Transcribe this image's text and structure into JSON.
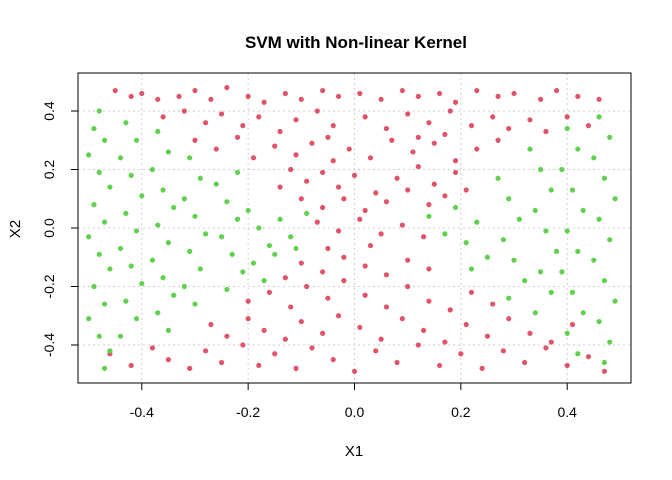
{
  "chart_data": {
    "type": "scatter",
    "title": "SVM with Non-linear Kernel",
    "xlabel": "X1",
    "ylabel": "X2",
    "xlim": [
      -0.52,
      0.52
    ],
    "ylim": [
      -0.53,
      0.53
    ],
    "xticks": [
      -0.4,
      -0.2,
      0.0,
      0.2,
      0.4
    ],
    "xtick_labels": [
      "-0.4",
      "-0.2",
      "0.0",
      "0.2",
      "0.4"
    ],
    "yticks": [
      -0.4,
      -0.2,
      0.0,
      0.2,
      0.4
    ],
    "ytick_labels": [
      "-0.4",
      "-0.2",
      "0.0",
      "0.2",
      "0.4"
    ],
    "grid": true,
    "legend": "none",
    "series": [
      {
        "color": "#DF536B",
        "points": [
          [
            -0.45,
            0.47
          ],
          [
            -0.42,
            0.45
          ],
          [
            -0.4,
            0.46
          ],
          [
            -0.37,
            0.44
          ],
          [
            -0.33,
            0.45
          ],
          [
            -0.3,
            0.47
          ],
          [
            -0.27,
            0.44
          ],
          [
            -0.24,
            0.48
          ],
          [
            -0.2,
            0.45
          ],
          [
            -0.17,
            0.43
          ],
          [
            -0.13,
            0.46
          ],
          [
            -0.1,
            0.44
          ],
          [
            -0.06,
            0.47
          ],
          [
            -0.03,
            0.45
          ],
          [
            0.01,
            0.46
          ],
          [
            0.05,
            0.44
          ],
          [
            0.09,
            0.47
          ],
          [
            0.12,
            0.45
          ],
          [
            0.16,
            0.46
          ],
          [
            0.19,
            0.43
          ],
          [
            0.23,
            0.47
          ],
          [
            0.27,
            0.45
          ],
          [
            0.3,
            0.46
          ],
          [
            0.35,
            0.44
          ],
          [
            0.38,
            0.47
          ],
          [
            0.42,
            0.45
          ],
          [
            0.46,
            0.44
          ],
          [
            -0.36,
            0.38
          ],
          [
            -0.32,
            0.4
          ],
          [
            -0.28,
            0.36
          ],
          [
            -0.25,
            0.39
          ],
          [
            -0.21,
            0.35
          ],
          [
            -0.18,
            0.38
          ],
          [
            -0.14,
            0.33
          ],
          [
            -0.11,
            0.37
          ],
          [
            -0.07,
            0.4
          ],
          [
            -0.04,
            0.35
          ],
          [
            0.02,
            0.38
          ],
          [
            0.06,
            0.34
          ],
          [
            0.1,
            0.39
          ],
          [
            0.14,
            0.36
          ],
          [
            0.18,
            0.4
          ],
          [
            0.22,
            0.35
          ],
          [
            0.26,
            0.38
          ],
          [
            0.29,
            0.34
          ],
          [
            0.33,
            0.37
          ],
          [
            0.36,
            0.33
          ],
          [
            0.4,
            0.38
          ],
          [
            0.44,
            0.35
          ],
          [
            -0.3,
            0.3
          ],
          [
            -0.26,
            0.27
          ],
          [
            -0.22,
            0.31
          ],
          [
            -0.19,
            0.24
          ],
          [
            -0.15,
            0.28
          ],
          [
            -0.11,
            0.25
          ],
          [
            -0.08,
            0.29
          ],
          [
            -0.04,
            0.23
          ],
          [
            -0.01,
            0.27
          ],
          [
            0.03,
            0.24
          ],
          [
            0.07,
            0.3
          ],
          [
            0.11,
            0.26
          ],
          [
            0.15,
            0.29
          ],
          [
            0.19,
            0.23
          ],
          [
            0.23,
            0.27
          ],
          [
            0.27,
            0.3
          ],
          [
            0.12,
            0.31
          ],
          [
            0.17,
            0.32
          ],
          [
            -0.05,
            0.31
          ],
          [
            -0.12,
            0.2
          ],
          [
            -0.09,
            0.16
          ],
          [
            -0.06,
            0.19
          ],
          [
            -0.03,
            0.14
          ],
          [
            0.0,
            0.18
          ],
          [
            0.04,
            0.12
          ],
          [
            0.08,
            0.17
          ],
          [
            0.12,
            0.21
          ],
          [
            0.15,
            0.15
          ],
          [
            0.19,
            0.19
          ],
          [
            -0.1,
            0.1
          ],
          [
            -0.06,
            0.07
          ],
          [
            -0.02,
            0.1
          ],
          [
            0.02,
            0.06
          ],
          [
            0.06,
            0.09
          ],
          [
            0.1,
            0.13
          ],
          [
            0.14,
            0.08
          ],
          [
            0.17,
            0.11
          ],
          [
            -0.14,
            0.14
          ],
          [
            0.21,
            0.13
          ],
          [
            -0.07,
            0.02
          ],
          [
            -0.03,
            -0.01
          ],
          [
            0.01,
            0.03
          ],
          [
            0.05,
            -0.02
          ],
          [
            0.09,
            0.01
          ],
          [
            0.13,
            -0.03
          ],
          [
            -0.05,
            -0.07
          ],
          [
            0.03,
            -0.06
          ],
          [
            -0.46,
            -0.43
          ],
          [
            -0.42,
            -0.47
          ],
          [
            -0.38,
            -0.41
          ],
          [
            -0.35,
            -0.45
          ],
          [
            -0.31,
            -0.48
          ],
          [
            -0.28,
            -0.42
          ],
          [
            -0.25,
            -0.46
          ],
          [
            -0.21,
            -0.4
          ],
          [
            -0.18,
            -0.47
          ],
          [
            -0.15,
            -0.43
          ],
          [
            -0.11,
            -0.48
          ],
          [
            -0.08,
            -0.41
          ],
          [
            -0.04,
            -0.45
          ],
          [
            0.0,
            -0.49
          ],
          [
            0.04,
            -0.42
          ],
          [
            0.08,
            -0.46
          ],
          [
            0.12,
            -0.4
          ],
          [
            0.16,
            -0.47
          ],
          [
            0.2,
            -0.43
          ],
          [
            0.24,
            -0.48
          ],
          [
            0.28,
            -0.42
          ],
          [
            0.32,
            -0.46
          ],
          [
            0.36,
            -0.41
          ],
          [
            0.4,
            -0.47
          ],
          [
            0.44,
            -0.44
          ],
          [
            0.47,
            -0.49
          ],
          [
            -0.27,
            -0.33
          ],
          [
            -0.24,
            -0.37
          ],
          [
            -0.2,
            -0.31
          ],
          [
            -0.17,
            -0.35
          ],
          [
            -0.13,
            -0.38
          ],
          [
            -0.1,
            -0.32
          ],
          [
            -0.06,
            -0.36
          ],
          [
            -0.03,
            -0.3
          ],
          [
            0.01,
            -0.34
          ],
          [
            0.05,
            -0.38
          ],
          [
            0.09,
            -0.31
          ],
          [
            0.13,
            -0.35
          ],
          [
            0.17,
            -0.39
          ],
          [
            0.21,
            -0.33
          ],
          [
            0.25,
            -0.37
          ],
          [
            0.29,
            -0.31
          ],
          [
            0.33,
            -0.36
          ],
          [
            0.37,
            -0.39
          ],
          [
            0.41,
            -0.33
          ],
          [
            -0.2,
            -0.25
          ],
          [
            -0.16,
            -0.22
          ],
          [
            -0.12,
            -0.27
          ],
          [
            -0.09,
            -0.2
          ],
          [
            -0.05,
            -0.24
          ],
          [
            -0.02,
            -0.18
          ],
          [
            0.02,
            -0.23
          ],
          [
            0.06,
            -0.27
          ],
          [
            0.1,
            -0.2
          ],
          [
            0.14,
            -0.25
          ],
          [
            0.18,
            -0.28
          ],
          [
            0.22,
            -0.22
          ],
          [
            0.26,
            -0.26
          ],
          [
            -0.1,
            -0.12
          ],
          [
            -0.06,
            -0.15
          ],
          [
            -0.02,
            -0.1
          ],
          [
            0.02,
            -0.13
          ],
          [
            0.06,
            -0.16
          ],
          [
            0.1,
            -0.11
          ],
          [
            0.14,
            -0.14
          ],
          [
            -0.13,
            -0.17
          ]
        ]
      },
      {
        "color": "#61D04F",
        "points": [
          [
            -0.48,
            0.4
          ],
          [
            -0.49,
            0.34
          ],
          [
            -0.47,
            0.3
          ],
          [
            -0.5,
            0.25
          ],
          [
            -0.48,
            0.19
          ],
          [
            -0.46,
            0.14
          ],
          [
            -0.49,
            0.08
          ],
          [
            -0.47,
            0.02
          ],
          [
            -0.5,
            -0.03
          ],
          [
            -0.48,
            -0.09
          ],
          [
            -0.46,
            -0.14
          ],
          [
            -0.49,
            -0.2
          ],
          [
            -0.47,
            -0.26
          ],
          [
            -0.5,
            -0.31
          ],
          [
            -0.48,
            -0.37
          ],
          [
            -0.46,
            -0.42
          ],
          [
            -0.47,
            -0.48
          ],
          [
            -0.43,
            0.36
          ],
          [
            -0.41,
            0.3
          ],
          [
            -0.44,
            0.24
          ],
          [
            -0.42,
            0.18
          ],
          [
            -0.4,
            0.11
          ],
          [
            -0.43,
            0.05
          ],
          [
            -0.41,
            -0.01
          ],
          [
            -0.44,
            -0.07
          ],
          [
            -0.42,
            -0.13
          ],
          [
            -0.4,
            -0.19
          ],
          [
            -0.43,
            -0.25
          ],
          [
            -0.41,
            -0.31
          ],
          [
            -0.44,
            -0.37
          ],
          [
            -0.37,
            0.33
          ],
          [
            -0.35,
            0.26
          ],
          [
            -0.38,
            0.2
          ],
          [
            -0.36,
            0.13
          ],
          [
            -0.34,
            0.07
          ],
          [
            -0.37,
            0.01
          ],
          [
            -0.35,
            -0.05
          ],
          [
            -0.38,
            -0.11
          ],
          [
            -0.36,
            -0.17
          ],
          [
            -0.34,
            -0.23
          ],
          [
            -0.37,
            -0.29
          ],
          [
            -0.35,
            -0.35
          ],
          [
            -0.31,
            0.24
          ],
          [
            -0.29,
            0.17
          ],
          [
            -0.32,
            0.1
          ],
          [
            -0.3,
            0.04
          ],
          [
            -0.28,
            -0.02
          ],
          [
            -0.31,
            -0.08
          ],
          [
            -0.29,
            -0.14
          ],
          [
            -0.32,
            -0.2
          ],
          [
            -0.3,
            -0.26
          ],
          [
            -0.26,
            0.15
          ],
          [
            -0.24,
            0.09
          ],
          [
            -0.22,
            0.03
          ],
          [
            -0.25,
            -0.03
          ],
          [
            -0.23,
            -0.09
          ],
          [
            -0.21,
            -0.15
          ],
          [
            -0.24,
            -0.21
          ],
          [
            -0.2,
            0.06
          ],
          [
            -0.18,
            0.0
          ],
          [
            -0.16,
            -0.06
          ],
          [
            -0.19,
            -0.12
          ],
          [
            -0.17,
            -0.18
          ],
          [
            -0.14,
            0.03
          ],
          [
            -0.12,
            -0.03
          ],
          [
            -0.15,
            -0.09
          ],
          [
            -0.09,
            0.05
          ],
          [
            -0.11,
            -0.07
          ],
          [
            -0.22,
            0.19
          ],
          [
            0.14,
            0.04
          ],
          [
            0.17,
            -0.02
          ],
          [
            0.19,
            0.07
          ],
          [
            0.21,
            -0.05
          ],
          [
            0.23,
            0.02
          ],
          [
            0.25,
            -0.1
          ],
          [
            0.22,
            -0.14
          ],
          [
            0.27,
            0.17
          ],
          [
            0.29,
            0.1
          ],
          [
            0.31,
            0.03
          ],
          [
            0.28,
            -0.04
          ],
          [
            0.3,
            -0.11
          ],
          [
            0.32,
            -0.18
          ],
          [
            0.29,
            -0.24
          ],
          [
            0.33,
            0.27
          ],
          [
            0.35,
            0.2
          ],
          [
            0.37,
            0.13
          ],
          [
            0.34,
            0.06
          ],
          [
            0.36,
            -0.01
          ],
          [
            0.38,
            -0.08
          ],
          [
            0.35,
            -0.15
          ],
          [
            0.37,
            -0.22
          ],
          [
            0.34,
            -0.29
          ],
          [
            0.4,
            0.34
          ],
          [
            0.42,
            0.27
          ],
          [
            0.39,
            0.2
          ],
          [
            0.41,
            0.13
          ],
          [
            0.43,
            0.06
          ],
          [
            0.4,
            -0.01
          ],
          [
            0.42,
            -0.08
          ],
          [
            0.39,
            -0.15
          ],
          [
            0.41,
            -0.22
          ],
          [
            0.43,
            -0.29
          ],
          [
            0.4,
            -0.36
          ],
          [
            0.42,
            -0.43
          ],
          [
            0.46,
            0.38
          ],
          [
            0.48,
            0.31
          ],
          [
            0.45,
            0.24
          ],
          [
            0.47,
            0.17
          ],
          [
            0.49,
            0.1
          ],
          [
            0.46,
            0.03
          ],
          [
            0.48,
            -0.04
          ],
          [
            0.45,
            -0.11
          ],
          [
            0.47,
            -0.18
          ],
          [
            0.49,
            -0.25
          ],
          [
            0.46,
            -0.32
          ],
          [
            0.48,
            -0.39
          ],
          [
            0.47,
            -0.46
          ]
        ]
      }
    ]
  }
}
